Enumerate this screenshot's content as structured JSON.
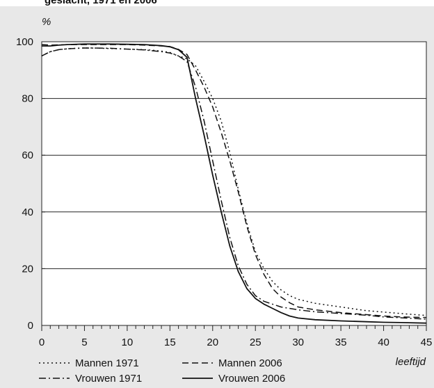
{
  "header": {
    "title_fragment": "geslacht, 1971 en 2006"
  },
  "chart_data": {
    "type": "line",
    "ylabel": "%",
    "xlabel": "leeftijd",
    "xlim": [
      0,
      45
    ],
    "ylim": [
      0,
      100
    ],
    "x_ticks": [
      0,
      5,
      10,
      15,
      20,
      25,
      30,
      35,
      40,
      45
    ],
    "y_ticks": [
      0,
      20,
      40,
      60,
      80,
      100
    ],
    "grid": "horizontal",
    "legend_position": "bottom",
    "series": [
      {
        "name": "Mannen 1971",
        "style": "dotted",
        "points": [
          [
            0,
            95
          ],
          [
            1,
            96.5
          ],
          [
            2,
            97.2
          ],
          [
            3,
            97.5
          ],
          [
            4,
            97.7
          ],
          [
            5,
            97.8
          ],
          [
            6,
            97.8
          ],
          [
            7,
            97.7
          ],
          [
            8,
            97.6
          ],
          [
            9,
            97.5
          ],
          [
            10,
            97.4
          ],
          [
            11,
            97.3
          ],
          [
            12,
            97.2
          ],
          [
            13,
            97
          ],
          [
            14,
            96.7
          ],
          [
            15,
            96.2
          ],
          [
            16,
            95
          ],
          [
            17,
            94
          ],
          [
            18,
            91.5
          ],
          [
            19,
            86
          ],
          [
            20,
            80
          ],
          [
            21,
            72
          ],
          [
            22,
            61
          ],
          [
            23,
            48
          ],
          [
            24,
            36
          ],
          [
            25,
            26
          ],
          [
            26,
            20
          ],
          [
            27,
            15.5
          ],
          [
            28,
            12.5
          ],
          [
            29,
            10.5
          ],
          [
            30,
            9.2
          ],
          [
            32,
            7.8
          ],
          [
            35,
            6.5
          ],
          [
            38,
            5.2
          ],
          [
            40,
            4.7
          ],
          [
            42,
            4.2
          ],
          [
            45,
            3.5
          ]
        ]
      },
      {
        "name": "Mannen 2006",
        "style": "dashed",
        "points": [
          [
            0,
            99
          ],
          [
            1,
            98.8
          ],
          [
            2,
            98.9
          ],
          [
            3,
            99
          ],
          [
            5,
            99
          ],
          [
            8,
            99
          ],
          [
            10,
            99
          ],
          [
            12,
            98.8
          ],
          [
            14,
            98.5
          ],
          [
            15,
            98.3
          ],
          [
            16,
            97.3
          ],
          [
            17,
            95.5
          ],
          [
            18,
            90
          ],
          [
            19,
            84
          ],
          [
            20,
            77
          ],
          [
            21,
            68
          ],
          [
            22,
            58
          ],
          [
            23,
            47
          ],
          [
            24,
            35
          ],
          [
            25,
            25
          ],
          [
            26,
            18
          ],
          [
            27,
            13
          ],
          [
            28,
            10
          ],
          [
            29,
            8
          ],
          [
            30,
            6.5
          ],
          [
            32,
            5.5
          ],
          [
            35,
            4.5
          ],
          [
            38,
            3.8
          ],
          [
            40,
            3.3
          ],
          [
            42,
            3
          ],
          [
            45,
            2.8
          ]
        ]
      },
      {
        "name": "Vrouwen 1971",
        "style": "dashdot",
        "points": [
          [
            0,
            95
          ],
          [
            1,
            96.5
          ],
          [
            2,
            97.2
          ],
          [
            3,
            97.5
          ],
          [
            5,
            97.8
          ],
          [
            8,
            97.7
          ],
          [
            10,
            97.4
          ],
          [
            12,
            97.1
          ],
          [
            14,
            96.5
          ],
          [
            15,
            96
          ],
          [
            16,
            95
          ],
          [
            17,
            93
          ],
          [
            18,
            84
          ],
          [
            19,
            72
          ],
          [
            20,
            58
          ],
          [
            21,
            44
          ],
          [
            22,
            31
          ],
          [
            23,
            21
          ],
          [
            24,
            14.5
          ],
          [
            25,
            10.5
          ],
          [
            26,
            8.5
          ],
          [
            27,
            7.5
          ],
          [
            28,
            6.5
          ],
          [
            30,
            5.5
          ],
          [
            32,
            4.8
          ],
          [
            35,
            4.2
          ],
          [
            38,
            3.6
          ],
          [
            40,
            3
          ],
          [
            42,
            2.7
          ],
          [
            45,
            2.2
          ]
        ]
      },
      {
        "name": "Vrouwen 2006",
        "style": "solid",
        "points": [
          [
            0,
            98.5
          ],
          [
            1,
            98.5
          ],
          [
            2,
            98.8
          ],
          [
            3,
            99
          ],
          [
            5,
            99.2
          ],
          [
            8,
            99.2
          ],
          [
            10,
            99.1
          ],
          [
            12,
            99
          ],
          [
            14,
            98.6
          ],
          [
            15,
            98.2
          ],
          [
            16,
            97.2
          ],
          [
            17,
            94.5
          ],
          [
            18,
            80
          ],
          [
            19,
            67
          ],
          [
            20,
            53
          ],
          [
            21,
            40
          ],
          [
            22,
            28
          ],
          [
            23,
            19
          ],
          [
            24,
            13
          ],
          [
            25,
            9.5
          ],
          [
            26,
            7.5
          ],
          [
            27,
            6
          ],
          [
            28,
            4.5
          ],
          [
            29,
            3.3
          ],
          [
            30,
            2.6
          ],
          [
            32,
            2
          ],
          [
            35,
            1.6
          ],
          [
            38,
            1.3
          ],
          [
            40,
            1.1
          ],
          [
            42,
            1
          ],
          [
            45,
            0.8
          ]
        ]
      }
    ]
  }
}
